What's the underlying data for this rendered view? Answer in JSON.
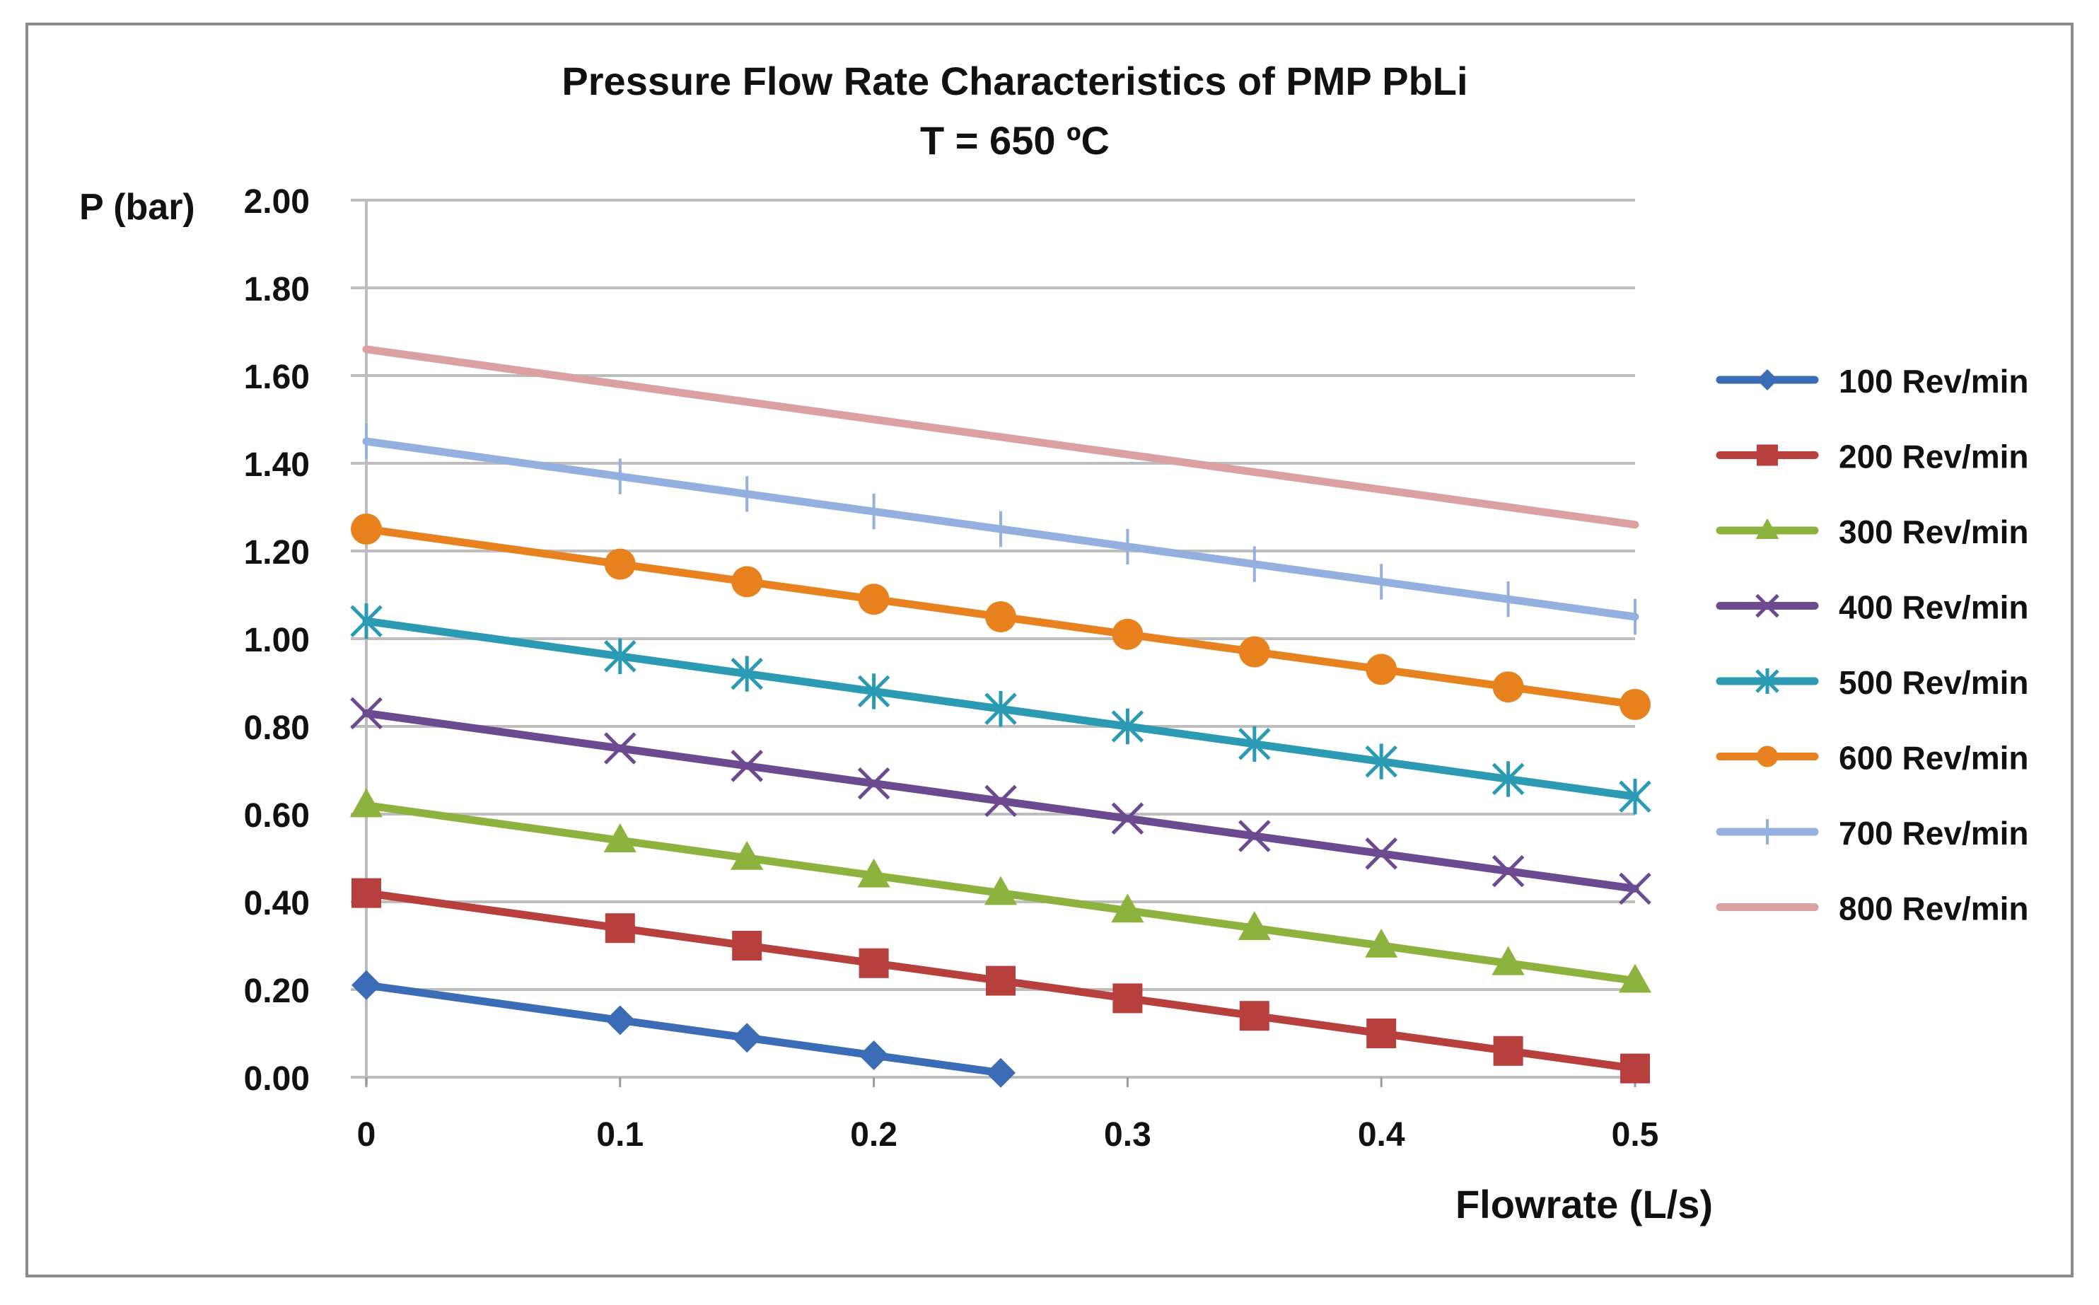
{
  "chart_data": {
    "type": "line",
    "title": "Pressure Flow Rate Characteristics of PMP PbLi",
    "subtitle": "T = 650 ºC",
    "xlabel": "Flowrate (L/s)",
    "ylabel": "P (bar)",
    "xlim": [
      0,
      0.5
    ],
    "ylim": [
      0,
      2.0
    ],
    "x_ticks": [
      "0",
      "0.1",
      "0.2",
      "0.3",
      "0.4",
      "0.5"
    ],
    "x_tick_values": [
      0,
      0.1,
      0.2,
      0.3,
      0.4,
      0.5
    ],
    "y_ticks": [
      "0.00",
      "0.20",
      "0.40",
      "0.60",
      "0.80",
      "1.00",
      "1.20",
      "1.40",
      "1.60",
      "1.80",
      "2.00"
    ],
    "y_tick_values": [
      0,
      0.2,
      0.4,
      0.6,
      0.8,
      1.0,
      1.2,
      1.4,
      1.6,
      1.8,
      2.0
    ],
    "grid": "horizontal",
    "legend_position": "right",
    "series": [
      {
        "name": "100 Rev/min",
        "color": "#3a6db5",
        "marker": "diamond",
        "x": [
          0,
          0.1,
          0.15,
          0.2,
          0.25
        ],
        "y": [
          0.21,
          0.13,
          0.09,
          0.05,
          0.01
        ]
      },
      {
        "name": "200 Rev/min",
        "color": "#b8403c",
        "marker": "square",
        "x": [
          0,
          0.1,
          0.15,
          0.2,
          0.25,
          0.3,
          0.35,
          0.4,
          0.45,
          0.5
        ],
        "y": [
          0.42,
          0.34,
          0.3,
          0.26,
          0.22,
          0.18,
          0.14,
          0.1,
          0.06,
          0.02
        ]
      },
      {
        "name": "300 Rev/min",
        "color": "#8db33f",
        "marker": "triangle",
        "x": [
          0,
          0.1,
          0.15,
          0.2,
          0.25,
          0.3,
          0.35,
          0.4,
          0.45,
          0.5
        ],
        "y": [
          0.62,
          0.54,
          0.5,
          0.46,
          0.42,
          0.38,
          0.34,
          0.3,
          0.26,
          0.22
        ]
      },
      {
        "name": "400 Rev/min",
        "color": "#6b4a8f",
        "marker": "x",
        "x": [
          0,
          0.1,
          0.15,
          0.2,
          0.25,
          0.3,
          0.35,
          0.4,
          0.45,
          0.5
        ],
        "y": [
          0.83,
          0.75,
          0.71,
          0.67,
          0.63,
          0.59,
          0.55,
          0.51,
          0.47,
          0.43
        ]
      },
      {
        "name": "500 Rev/min",
        "color": "#2b9bb3",
        "marker": "asterisk",
        "x": [
          0,
          0.1,
          0.15,
          0.2,
          0.25,
          0.3,
          0.35,
          0.4,
          0.45,
          0.5
        ],
        "y": [
          1.04,
          0.96,
          0.92,
          0.88,
          0.84,
          0.8,
          0.76,
          0.72,
          0.68,
          0.64
        ]
      },
      {
        "name": "600 Rev/min",
        "color": "#e8821e",
        "marker": "circle",
        "x": [
          0,
          0.1,
          0.15,
          0.2,
          0.25,
          0.3,
          0.35,
          0.4,
          0.45,
          0.5
        ],
        "y": [
          1.25,
          1.17,
          1.13,
          1.09,
          1.05,
          1.01,
          0.97,
          0.93,
          0.89,
          0.85
        ]
      },
      {
        "name": "700 Rev/min",
        "color": "#94b0de",
        "marker": "plus",
        "x": [
          0,
          0.1,
          0.15,
          0.2,
          0.25,
          0.3,
          0.35,
          0.4,
          0.45,
          0.5
        ],
        "y": [
          1.45,
          1.37,
          1.33,
          1.29,
          1.25,
          1.21,
          1.17,
          1.13,
          1.09,
          1.05
        ]
      },
      {
        "name": "800 Rev/min",
        "color": "#dba0a0",
        "marker": "none",
        "x": [
          0,
          0.1,
          0.15,
          0.2,
          0.25,
          0.3,
          0.35,
          0.4,
          0.45,
          0.5
        ],
        "y": [
          1.66,
          1.58,
          1.54,
          1.5,
          1.46,
          1.42,
          1.38,
          1.34,
          1.3,
          1.26
        ]
      }
    ]
  }
}
